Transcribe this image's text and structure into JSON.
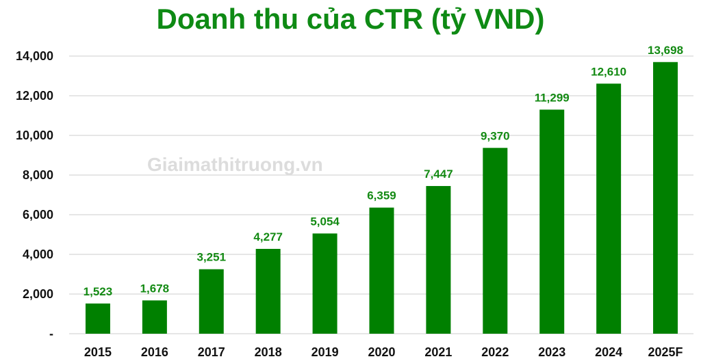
{
  "chart_data": {
    "type": "bar",
    "title": "Doanh thu của CTR (tỷ VND)",
    "xlabel": "",
    "ylabel": "",
    "categories": [
      "2015",
      "2016",
      "2017",
      "2018",
      "2019",
      "2020",
      "2021",
      "2022",
      "2023",
      "2024",
      "2025F"
    ],
    "values": [
      1523,
      1678,
      3251,
      4277,
      5054,
      6359,
      7447,
      9370,
      11299,
      12610,
      13698
    ],
    "data_labels": [
      "1,523",
      "1,678",
      "3,251",
      "4,277",
      "5,054",
      "6,359",
      "7,447",
      "9,370",
      "11,299",
      "12,610",
      "13,698"
    ],
    "ylim": [
      0,
      14000
    ],
    "yticks": [
      0,
      2000,
      4000,
      6000,
      8000,
      10000,
      12000,
      14000
    ],
    "ytick_labels": [
      "-",
      "2,000",
      "4,000",
      "6,000",
      "8,000",
      "10,000",
      "12,000",
      "14,000"
    ],
    "grid": true,
    "legend": "none",
    "bar_color": "#008000",
    "label_color": "#138a13",
    "watermark": "Giaimathitruong.vn"
  }
}
